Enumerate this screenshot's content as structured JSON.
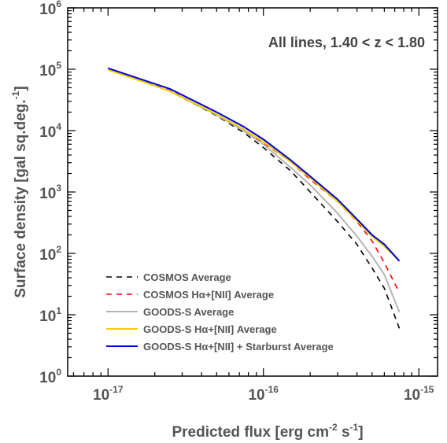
{
  "chart_data": {
    "type": "line",
    "title": "",
    "annotation": "All lines, 1.40 < z < 1.80",
    "xlabel": "Predicted flux [erg cm-2 s-1]",
    "xlabel_parts": {
      "base": "Predicted flux [erg cm",
      "exp1": "-2",
      "mid": " s",
      "exp2": "-1",
      "end": "]"
    },
    "ylabel": "Surface density [gal sq.deg.-1]",
    "ylabel_parts": {
      "base": "Surface density [gal sq.deg.",
      "exp": "-1",
      "end": "]"
    },
    "xscale": "log",
    "yscale": "log",
    "xlim": [
      5.5e-18,
      1.32e-15
    ],
    "ylim": [
      1,
      1000000
    ],
    "x_ticks": [
      {
        "value": 1e-17,
        "base": "10",
        "exp": "-17"
      },
      {
        "value": 1e-16,
        "base": "10",
        "exp": "-16"
      },
      {
        "value": 1e-15,
        "base": "10",
        "exp": "-15"
      }
    ],
    "y_ticks": [
      {
        "value": 1,
        "base": "10",
        "exp": "0"
      },
      {
        "value": 10,
        "base": "10",
        "exp": "1"
      },
      {
        "value": 100,
        "base": "10",
        "exp": "2"
      },
      {
        "value": 1000,
        "base": "10",
        "exp": "3"
      },
      {
        "value": 10000,
        "base": "10",
        "exp": "4"
      },
      {
        "value": 100000,
        "base": "10",
        "exp": "5"
      },
      {
        "value": 1000000,
        "base": "10",
        "exp": "6"
      }
    ],
    "legend_position": "bottom-left",
    "series": [
      {
        "name": "COSMOS Average",
        "color": "#000000",
        "dash": "dashed",
        "x": [
          1e-17,
          2.5e-17,
          5e-17,
          7.5e-17,
          1e-16,
          1.5e-16,
          2e-16,
          3e-16,
          4e-16,
          5e-16,
          6e-16,
          7.5e-16
        ],
        "y": [
          100000,
          44000,
          17500,
          9200,
          5300,
          2200,
          1000,
          330,
          140,
          58,
          27,
          6
        ]
      },
      {
        "name": "COSMOS Hα+[NII] Average",
        "color": "#ff0000",
        "dash": "dashed",
        "x": [
          1e-17,
          2.5e-17,
          5e-17,
          7.5e-17,
          1e-16,
          1.5e-16,
          2e-16,
          3e-16,
          4e-16,
          5e-16,
          6e-16,
          7.5e-16
        ],
        "y": [
          100000,
          45000,
          18500,
          10500,
          6300,
          3100,
          1600,
          700,
          330,
          160,
          70,
          23
        ]
      },
      {
        "name": "GOODS-S Average",
        "color": "#b4b4b4",
        "dash": "solid",
        "x": [
          1e-17,
          2.5e-17,
          5e-17,
          7.5e-17,
          1e-16,
          1.5e-16,
          2e-16,
          3e-16,
          4e-16,
          5e-16,
          6e-16,
          7.5e-16
        ],
        "y": [
          100000,
          44000,
          18000,
          9800,
          6000,
          2500,
          1300,
          450,
          190,
          90,
          45,
          11
        ]
      },
      {
        "name": "GOODS-S Hα+[NII] Average",
        "color": "#f0d000",
        "dash": "solid",
        "x": [
          1e-17,
          2.5e-17,
          5e-17,
          7.5e-17,
          1e-16,
          1.5e-16,
          2e-16,
          3e-16,
          4e-16,
          5e-16,
          6e-16,
          7.5e-16
        ],
        "y": [
          98000,
          44000,
          18500,
          10500,
          6600,
          3100,
          1700,
          700,
          340,
          190,
          130,
          75
        ]
      },
      {
        "name": "GOODS-S Hα+[NII] + Starburst Average",
        "color": "#0000e0",
        "dash": "solid",
        "x": [
          1e-17,
          2.5e-17,
          5e-17,
          7.5e-17,
          1e-16,
          1.5e-16,
          2e-16,
          3e-16,
          4e-16,
          5e-16,
          6e-16,
          7.5e-16
        ],
        "y": [
          104000,
          48000,
          20000,
          11500,
          7200,
          3300,
          1800,
          760,
          360,
          200,
          140,
          75
        ]
      }
    ]
  }
}
